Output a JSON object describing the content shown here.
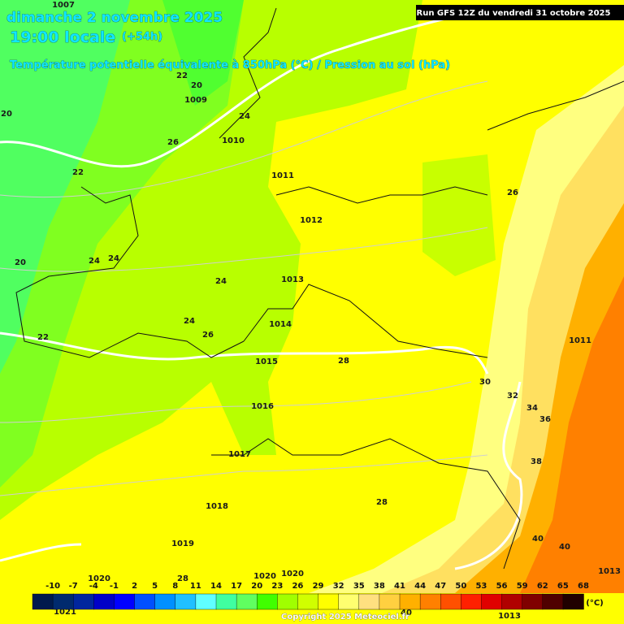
{
  "header": {
    "date": "dimanche 2 novembre 2025",
    "time": "19:00 locale",
    "lead": "(+54h)",
    "subtitle": "Température potentielle équivalente à 850hPa (°C) / Pression au sol (hPa)",
    "run": "Run GFS 12Z du vendredi 31 octobre 2025"
  },
  "map_labels": [
    "1007",
    "20",
    "22",
    "20",
    "1009",
    "24",
    "26",
    "1010",
    "22",
    "1011",
    "1012",
    "26",
    "20",
    "24",
    "24",
    "24",
    "1013",
    "24",
    "1014",
    "26",
    "22",
    "1015",
    "28",
    "1011",
    "30",
    "32",
    "34",
    "36",
    "1016",
    "1017",
    "38",
    "1018",
    "28",
    "1019",
    "40",
    "40",
    "1020",
    "28",
    "1020",
    "1020",
    "1013",
    "1021",
    "40",
    "1013"
  ],
  "legend": {
    "ticks": [
      "-10",
      "-7",
      "-4",
      "-1",
      "2",
      "5",
      "8",
      "11",
      "14",
      "17",
      "20",
      "23",
      "26",
      "29",
      "32",
      "35",
      "38",
      "41",
      "44",
      "47",
      "50",
      "53",
      "56",
      "59",
      "62",
      "65",
      "68"
    ],
    "colors": [
      "#001a4d",
      "#002a6e",
      "#00269e",
      "#0000c8",
      "#0000ff",
      "#0050ff",
      "#0090ff",
      "#20c0ff",
      "#60ffff",
      "#40ffa0",
      "#60ff60",
      "#40ff00",
      "#a0ff00",
      "#d0ff00",
      "#ffff00",
      "#ffff70",
      "#ffe080",
      "#ffd040",
      "#ffb000",
      "#ff8000",
      "#ff5000",
      "#ff2000",
      "#e00000",
      "#b00000",
      "#800000",
      "#500000",
      "#200000"
    ],
    "unit": "(°C)"
  },
  "footer": {
    "copyright": "Copyright 2025 Meteociel.fr"
  }
}
